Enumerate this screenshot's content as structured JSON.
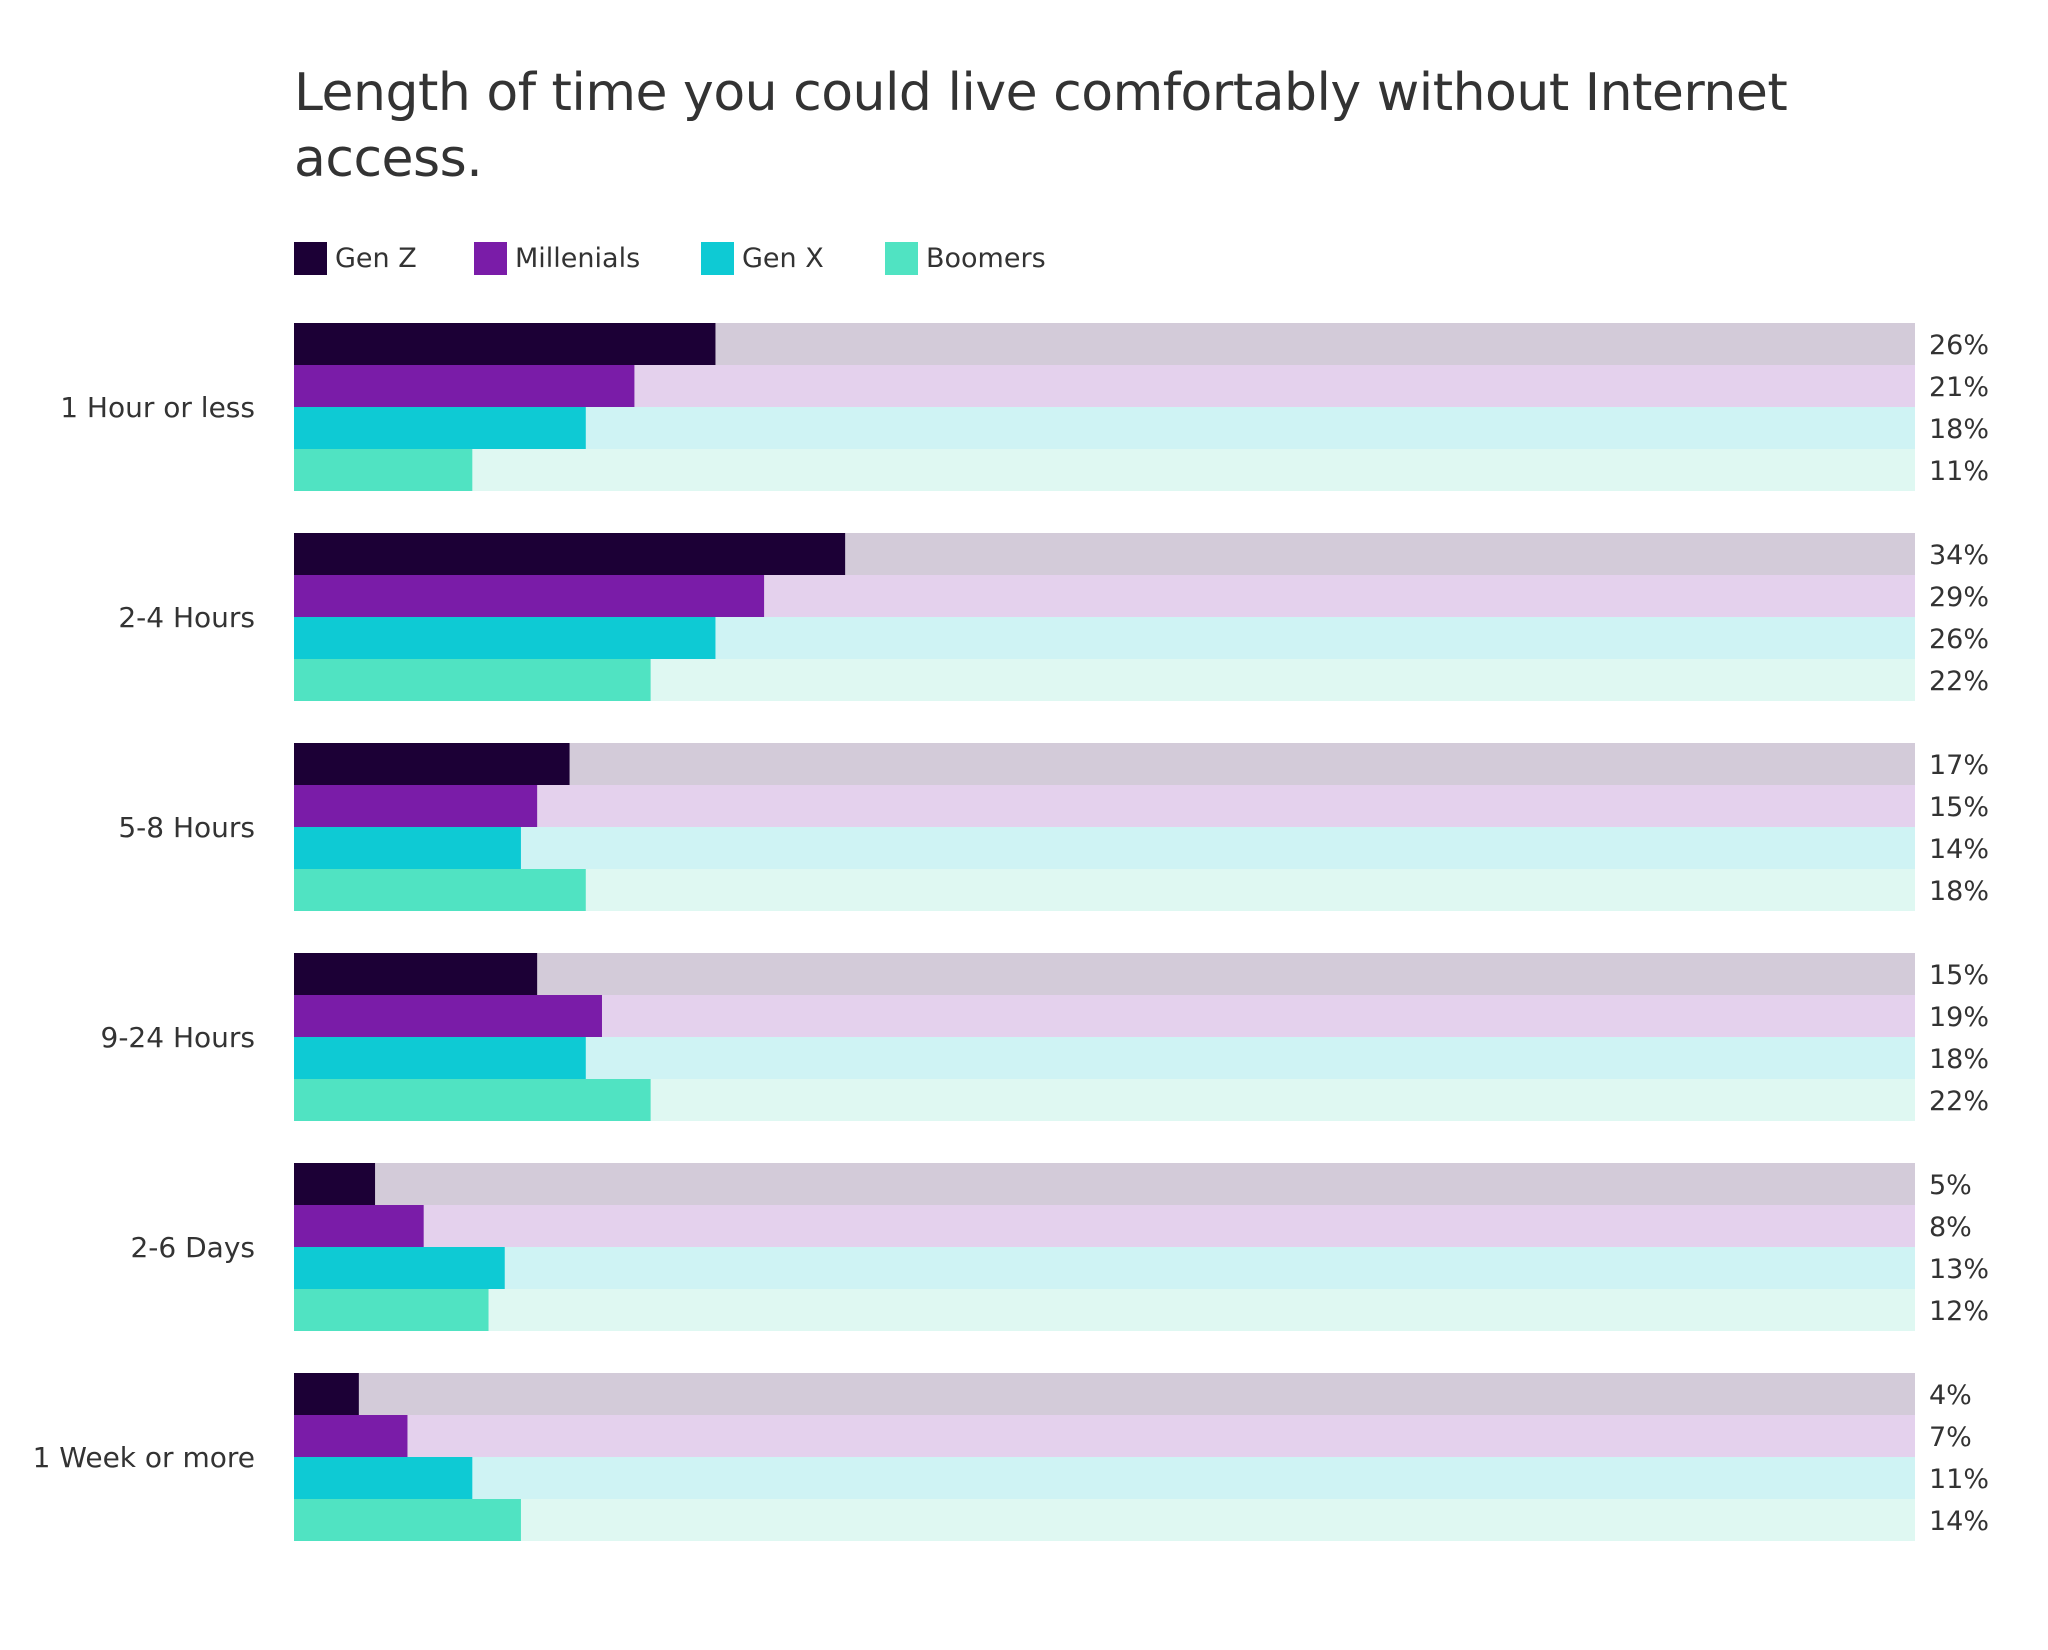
{
  "chart_data": {
    "type": "bar",
    "orientation": "horizontal",
    "title": "Length of time you could live comfortably without Internet access.",
    "categories": [
      "1 Hour or less",
      "2-4 Hours",
      "5-8 Hours",
      "9-24 Hours",
      "2-6 Days",
      "1 Week or more"
    ],
    "series": [
      {
        "name": "Gen Z",
        "color": "#1c0036",
        "track_color": "#d3cbd9",
        "values": [
          26,
          34,
          17,
          15,
          5,
          4
        ]
      },
      {
        "name": "Millenials",
        "color": "#7a1ca8",
        "track_color": "#e4d1ed",
        "values": [
          21,
          29,
          15,
          19,
          8,
          7
        ]
      },
      {
        "name": "Gen X",
        "color": "#0ecad4",
        "track_color": "#cff3f4",
        "values": [
          18,
          26,
          14,
          18,
          13,
          11
        ]
      },
      {
        "name": "Boomers",
        "color": "#50e3c2",
        "track_color": "#dff8f2",
        "values": [
          11,
          22,
          18,
          22,
          12,
          14
        ]
      }
    ],
    "value_suffix": "%",
    "xlim": [
      0,
      100
    ],
    "grid": false,
    "legend_position": "top-left"
  }
}
